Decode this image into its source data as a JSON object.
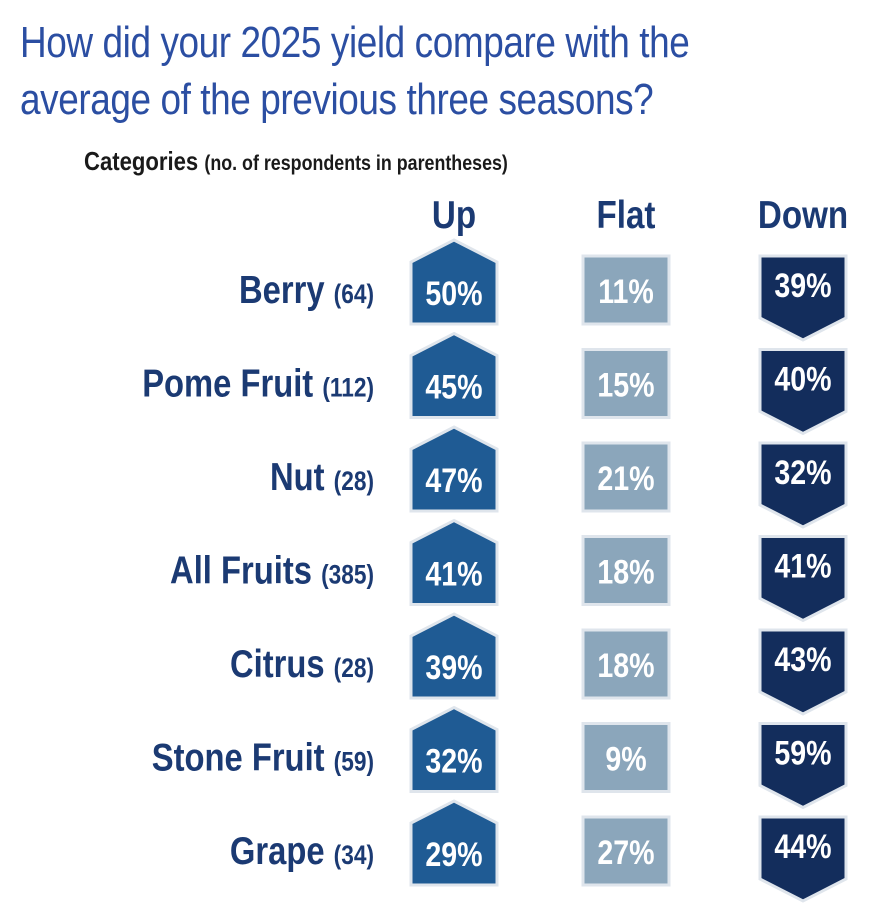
{
  "chart_data": {
    "type": "table",
    "title": "How did your 2025 yield compare with the average of the previous three seasons?",
    "title_lines": [
      "How did your 2025 yield compare with the",
      "average of the previous three seasons?"
    ],
    "subtitle": "Categories",
    "subtitle_note": "(no. of respondents in parentheses)",
    "columns": [
      "Up",
      "Flat",
      "Down"
    ],
    "rows": [
      {
        "category": "Berry",
        "respondents": "(64)",
        "up": 50,
        "flat": 11,
        "down": 39,
        "labels": [
          "50%",
          "11%",
          "39%"
        ]
      },
      {
        "category": "Pome Fruit",
        "respondents": "(112)",
        "up": 45,
        "flat": 15,
        "down": 40,
        "labels": [
          "45%",
          "15%",
          "40%"
        ]
      },
      {
        "category": "Nut",
        "respondents": "(28)",
        "up": 47,
        "flat": 21,
        "down": 32,
        "labels": [
          "47%",
          "21%",
          "32%"
        ]
      },
      {
        "category": "All Fruits",
        "respondents": "(385)",
        "up": 41,
        "flat": 18,
        "down": 41,
        "labels": [
          "41%",
          "18%",
          "41%"
        ]
      },
      {
        "category": "Citrus",
        "respondents": "(28)",
        "up": 39,
        "flat": 18,
        "down": 43,
        "labels": [
          "39%",
          "18%",
          "43%"
        ]
      },
      {
        "category": "Stone Fruit",
        "respondents": "(59)",
        "up": 32,
        "flat": 9,
        "down": 59,
        "labels": [
          "32%",
          "9%",
          "59%"
        ]
      },
      {
        "category": "Grape",
        "respondents": "(34)",
        "up": 29,
        "flat": 27,
        "down": 44,
        "labels": [
          "29%",
          "27%",
          "44%"
        ]
      }
    ]
  },
  "colors": {
    "title": "#2b4ea2",
    "heading": "#1b3a73",
    "up": "#1f5b94",
    "flat": "#8ba6bb",
    "down": "#132d5c",
    "shape_border": "#dfe5ec"
  }
}
